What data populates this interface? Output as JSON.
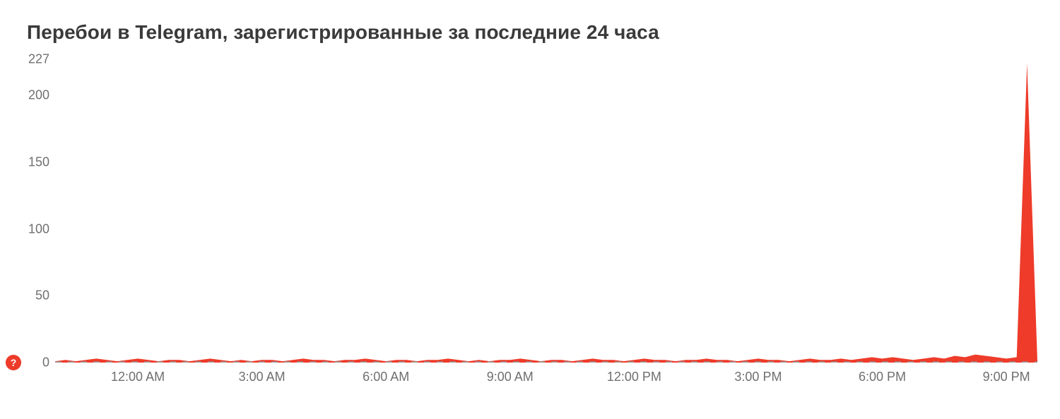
{
  "title": "Перебои в Telegram, зарегистрированные за последние 24 часа",
  "title_fontsize": 28,
  "help": {
    "label": "?"
  },
  "chart": {
    "type": "area",
    "background_color": "#ffffff",
    "series_color": "#ee3b2a",
    "baseline_color": "#9a9a9a",
    "baseline_dash": "9 9",
    "baseline_width": 3,
    "axis_fontsize": 18,
    "axis_text_color": "#6f6f6f",
    "ylim": [
      0,
      227
    ],
    "yticks": [
      0,
      50,
      100,
      150,
      200,
      227
    ],
    "x_count": 96,
    "xticks": [
      {
        "i": 8,
        "label": "12:00 AM"
      },
      {
        "i": 20,
        "label": "3:00 AM"
      },
      {
        "i": 32,
        "label": "6:00 AM"
      },
      {
        "i": 44,
        "label": "9:00 AM"
      },
      {
        "i": 56,
        "label": "12:00 PM"
      },
      {
        "i": 68,
        "label": "3:00 PM"
      },
      {
        "i": 80,
        "label": "6:00 PM"
      },
      {
        "i": 92,
        "label": "9:00 PM"
      }
    ],
    "values": [
      1,
      2,
      1,
      2,
      3,
      2,
      1,
      2,
      3,
      2,
      1,
      2,
      2,
      1,
      2,
      3,
      2,
      1,
      2,
      1,
      2,
      2,
      1,
      2,
      3,
      2,
      2,
      1,
      2,
      2,
      3,
      2,
      1,
      2,
      2,
      1,
      2,
      2,
      3,
      2,
      1,
      2,
      1,
      2,
      2,
      3,
      2,
      1,
      2,
      2,
      1,
      2,
      3,
      2,
      2,
      1,
      2,
      3,
      2,
      2,
      1,
      2,
      2,
      3,
      2,
      2,
      1,
      2,
      3,
      2,
      2,
      1,
      2,
      3,
      2,
      2,
      3,
      2,
      3,
      4,
      3,
      4,
      3,
      2,
      3,
      4,
      3,
      5,
      4,
      6,
      5,
      4,
      3,
      4,
      224,
      1
    ]
  }
}
